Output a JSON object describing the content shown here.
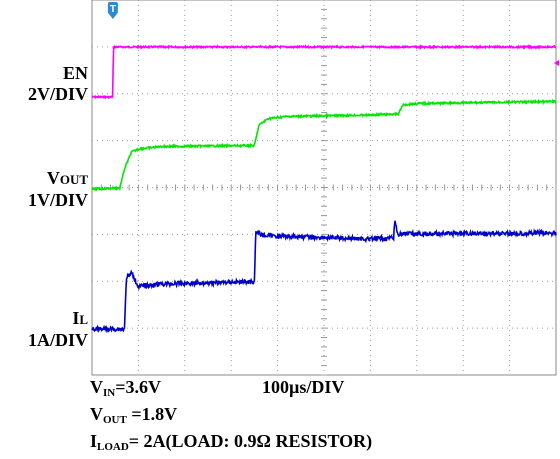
{
  "chart_data": {
    "type": "line",
    "title": "",
    "time_scale": "100µs/DIV",
    "grid": true,
    "divisions": {
      "x": 10,
      "y": 8
    },
    "series": [
      {
        "name": "EN",
        "scale_label": "2V/DIV",
        "color": "#ff00ff",
        "points": [
          [
            0,
            0
          ],
          [
            0.45,
            0
          ],
          [
            0.46,
            1
          ],
          [
            10,
            1
          ]
        ]
      },
      {
        "name": "VOUT",
        "scale_label": "1V/DIV",
        "color": "#00e600",
        "points": [
          [
            0,
            0
          ],
          [
            0.6,
            0.02
          ],
          [
            0.7,
            0.4
          ],
          [
            0.85,
            0.74
          ],
          [
            1,
            0.8
          ],
          [
            1.5,
            0.85
          ],
          [
            3.5,
            0.87
          ],
          [
            3.6,
            1.28
          ],
          [
            3.8,
            1.41
          ],
          [
            4.2,
            1.45
          ],
          [
            6,
            1.48
          ],
          [
            6.6,
            1.5
          ],
          [
            6.7,
            1.68
          ],
          [
            7,
            1.71
          ],
          [
            10,
            1.75
          ]
        ]
      },
      {
        "name": "IL",
        "scale_label": "1A/DIV",
        "color": "#0000cc",
        "points": [
          [
            0,
            0
          ],
          [
            0.7,
            0
          ],
          [
            0.74,
            1.02
          ],
          [
            0.85,
            1.12
          ],
          [
            1,
            0.85
          ],
          [
            1.5,
            0.9
          ],
          [
            3.5,
            0.95
          ],
          [
            3.53,
            1.95
          ],
          [
            3.7,
            1.87
          ],
          [
            6,
            1.8
          ],
          [
            6.5,
            1.82
          ],
          [
            6.53,
            2.2
          ],
          [
            6.58,
            1.9
          ],
          [
            10,
            1.92
          ]
        ]
      }
    ],
    "annotations": {
      "trigger_marker": "T",
      "vin": {
        "main": "V",
        "sub": "IN",
        "rest": "=3.6V"
      },
      "vout_setting": {
        "main": "V",
        "sub": "OUT",
        "rest": " =1.8V"
      },
      "iload": {
        "main": "I",
        "sub": "LOAD",
        "rest": "= 2A(LOAD: 0.9Ω RESISTOR)"
      }
    },
    "channel_labels": {
      "en": {
        "name": "EN",
        "scale": "2V/DIV"
      },
      "vout": {
        "main": "V",
        "sub": "OUT",
        "scale": "1V/DIV"
      },
      "il": {
        "main": "I",
        "sub": "L",
        "scale": "1A/DIV"
      }
    }
  }
}
